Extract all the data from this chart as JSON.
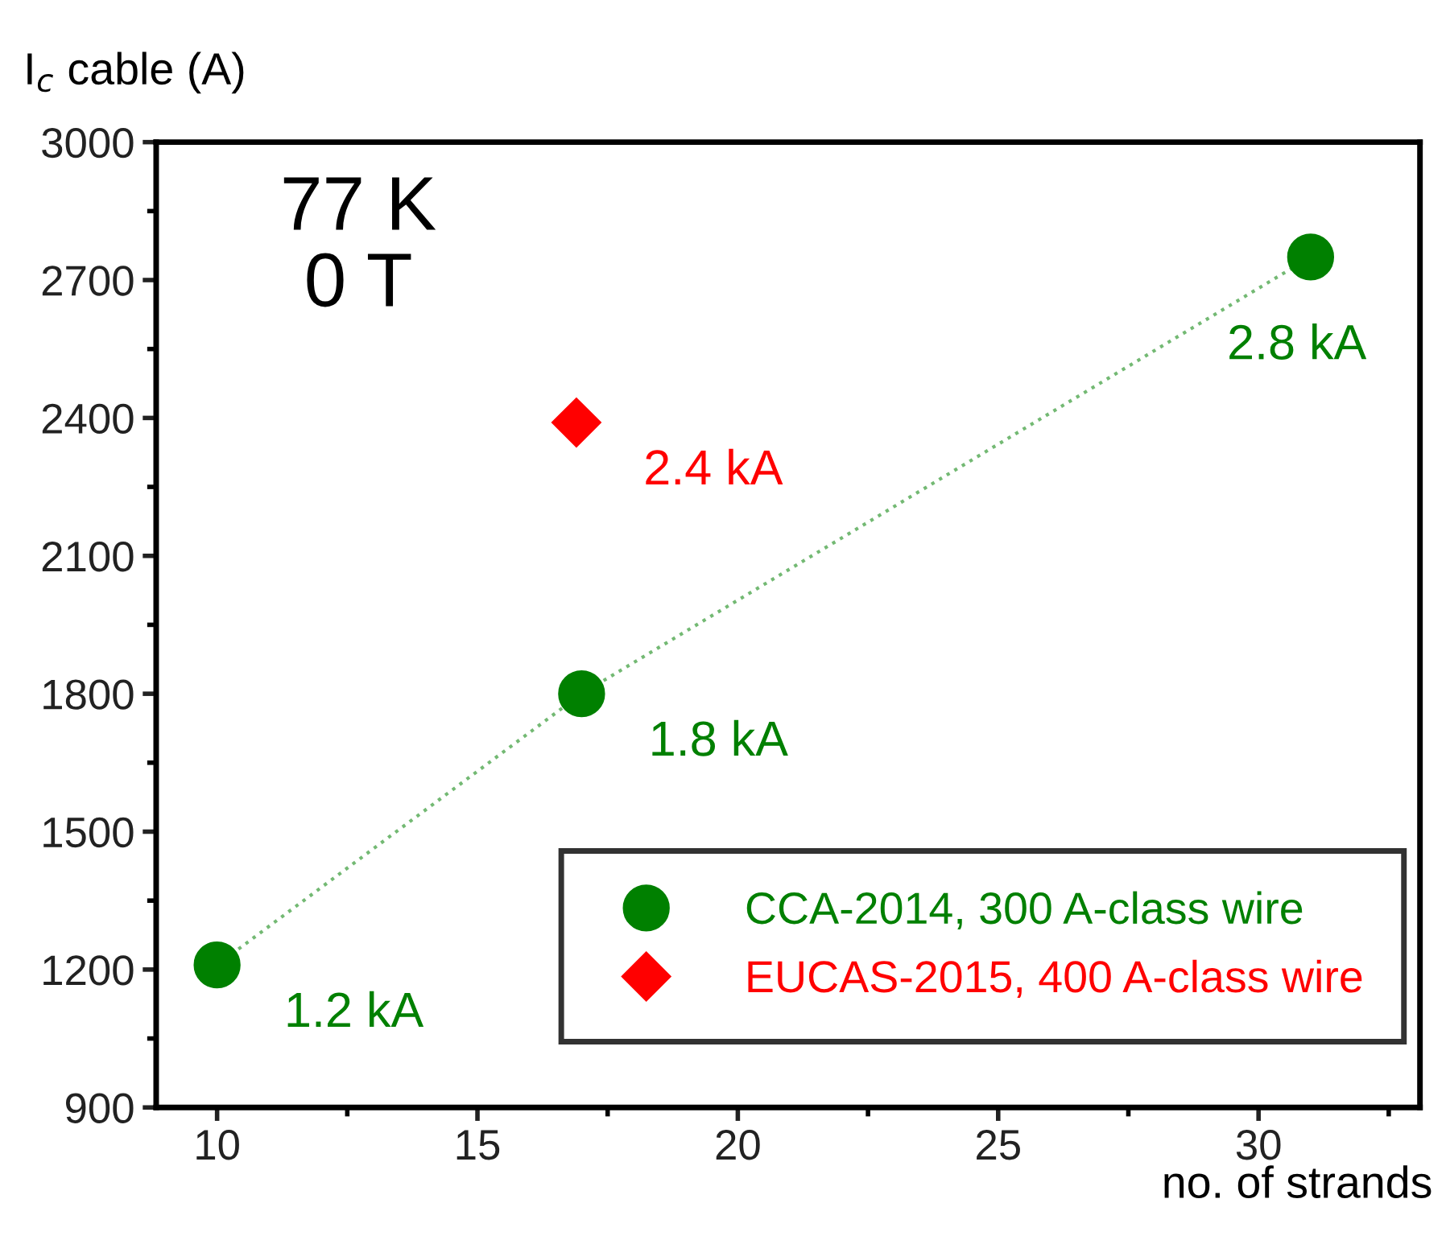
{
  "chart_data": {
    "type": "scatter",
    "xlabel": "no. of strands",
    "ylabel": "I$_{c}$ cable (A)",
    "xlim": [
      8.83,
      33.1
    ],
    "xticks": [
      10,
      15,
      20,
      25,
      30
    ],
    "ylim": [
      900,
      3000
    ],
    "yticks": [
      900,
      1200,
      1500,
      1800,
      2100,
      2400,
      2700,
      3000
    ],
    "grid": false,
    "legend": "bottom right",
    "series": [
      {
        "name": "CCA-2014, 300 A-class wire",
        "type": "line",
        "color": "#008000",
        "marker": "circle",
        "line_style": "dotted",
        "x": [
          10,
          17,
          31
        ],
        "values": [
          1210,
          1800,
          2750
        ]
      },
      {
        "name": "EUCAS-2015, 400 A-class wire",
        "color": "#ff0000",
        "marker": "diamond",
        "x": [
          16.9
        ],
        "values": [
          2390
        ]
      }
    ],
    "annotations": [
      "77 K\n0 T",
      {
        "text": "1.2 kA",
        "x": 10,
        "y": 1210
      },
      {
        "text": "1.8 kA",
        "x": 17,
        "y": 1800
      },
      {
        "text": "2.8 kA",
        "x": 31,
        "y": 2750
      },
      {
        "text": "2.4 kA",
        "x": 16.9,
        "y": 2390
      }
    ]
  }
}
